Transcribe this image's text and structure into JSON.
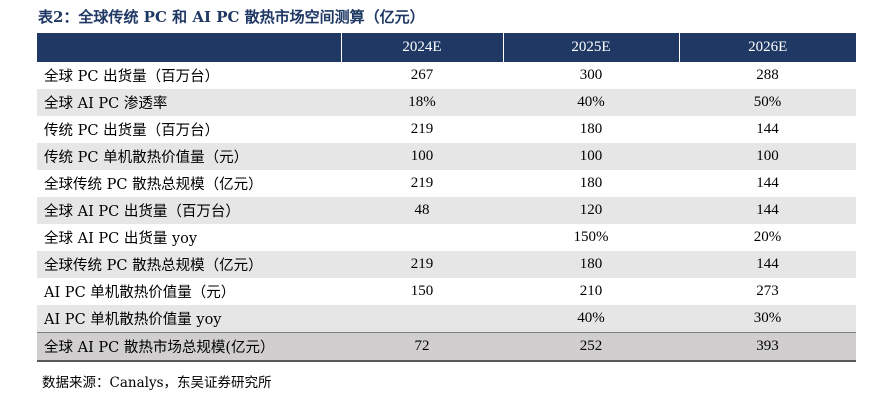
{
  "title": "表2：全球传统 PC 和 AI PC 散热市场空间测算（亿元）",
  "columns": [
    "",
    "2024E",
    "2025E",
    "2026E"
  ],
  "rows": [
    {
      "label": "全球 PC 出货量（百万台）",
      "v2024": "267",
      "v2025": "300",
      "v2026": "288"
    },
    {
      "label": "全球 AI PC 渗透率",
      "v2024": "18%",
      "v2025": "40%",
      "v2026": "50%"
    },
    {
      "label": "传统 PC 出货量（百万台）",
      "v2024": "219",
      "v2025": "180",
      "v2026": "144"
    },
    {
      "label": "传统 PC 单机散热价值量（元）",
      "v2024": "100",
      "v2025": "100",
      "v2026": "100"
    },
    {
      "label": "全球传统 PC 散热总规模（亿元）",
      "v2024": "219",
      "v2025": "180",
      "v2026": "144"
    },
    {
      "label": "全球 AI PC 出货量（百万台）",
      "v2024": "48",
      "v2025": "120",
      "v2026": "144"
    },
    {
      "label": "全球 AI PC 出货量 yoy",
      "v2024": "",
      "v2025": "150%",
      "v2026": "20%"
    },
    {
      "label": "全球传统 PC 散热总规模（亿元）",
      "v2024": "219",
      "v2025": "180",
      "v2026": "144"
    },
    {
      "label": "AI PC 单机散热价值量（元）",
      "v2024": "150",
      "v2025": "210",
      "v2026": "273"
    },
    {
      "label": "AI PC 单机散热价值量 yoy",
      "v2024": "",
      "v2025": "40%",
      "v2026": "30%"
    },
    {
      "label": "全球 AI PC 散热市场总规模(亿元）",
      "v2024": "72",
      "v2025": "252",
      "v2026": "393"
    }
  ],
  "source": "数据来源：Canalys，东吴证券研究所",
  "colors": {
    "header_bg": "#1f3864",
    "title": "#1f3864",
    "row_shade": "#e7e6e6",
    "total_row": "#d0cece"
  }
}
